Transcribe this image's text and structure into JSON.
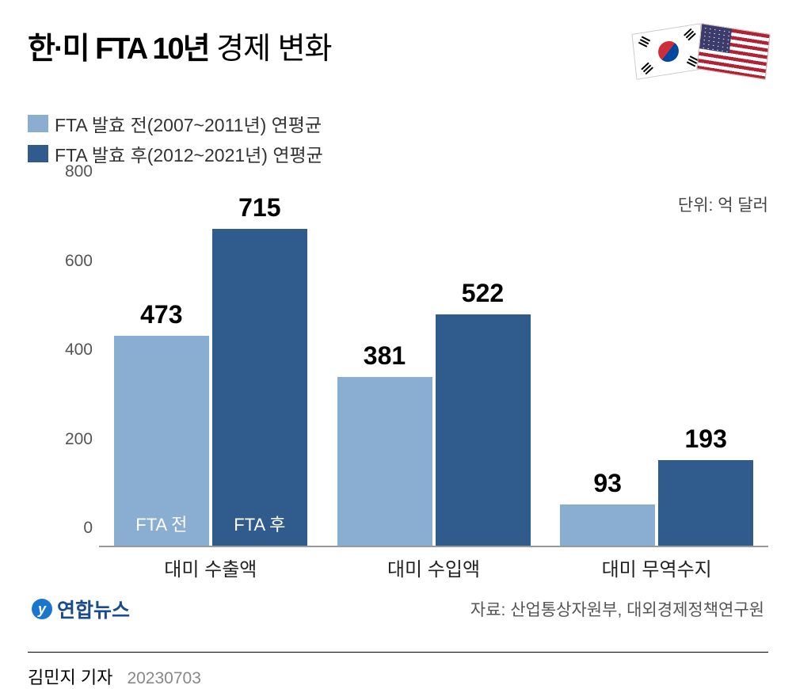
{
  "title_bold": "한·미 FTA 10년",
  "title_rest": " 경제 변화",
  "legend": {
    "before": {
      "label": "FTA 발효 전(2007~2011년) 연평균",
      "color": "#8aaed1"
    },
    "after": {
      "label": "FTA 발효 후(2012~2021년) 연평균",
      "color": "#2f5c8c"
    }
  },
  "unit_label": "단위: 억 달러",
  "chart": {
    "type": "bar",
    "ylim": [
      0,
      800
    ],
    "ytick_step": 200,
    "yticks": [
      0,
      200,
      400,
      600,
      800
    ],
    "categories": [
      "대미 수출액",
      "대미 수입액",
      "대미 무역수지"
    ],
    "before_values": [
      473,
      381,
      93
    ],
    "after_values": [
      715,
      522,
      193
    ],
    "before_color": "#8aaed1",
    "after_color": "#2f5c8c",
    "bar_inner_labels": {
      "before": "FTA 전",
      "after": "FTA 후"
    },
    "value_fontsize": 32,
    "label_fontsize": 24,
    "background_color": "#ffffff",
    "axis_color": "#999999"
  },
  "logo_text": "연합뉴스",
  "source": "자료: 산업통상자원부, 대외경제정책연구원",
  "byline_author": "김민지 기자",
  "byline_date": "20230703"
}
